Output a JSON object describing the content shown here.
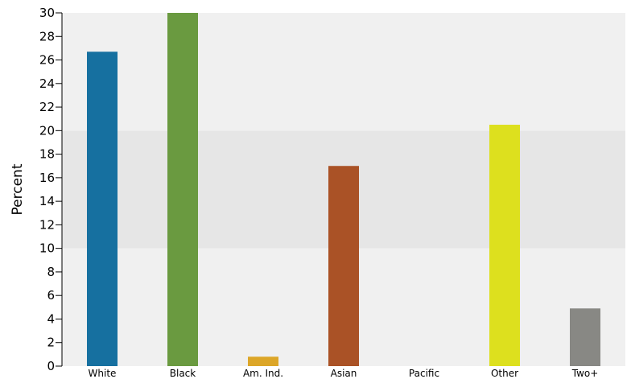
{
  "chart_data": {
    "type": "bar",
    "title": "",
    "xlabel": "",
    "ylabel": "Percent",
    "ylim": [
      0,
      30
    ],
    "yticks": [
      0,
      2,
      4,
      6,
      8,
      10,
      12,
      14,
      16,
      18,
      20,
      22,
      24,
      26,
      28,
      30
    ],
    "categories": [
      "White",
      "Black",
      "Am. Ind.",
      "Asian",
      "Pacific",
      "Other",
      "Two+"
    ],
    "values": [
      26.7,
      30.0,
      0.8,
      17.0,
      0.0,
      20.5,
      4.9
    ],
    "colors": [
      "#1670a0",
      "#6a9a40",
      "#dca628",
      "#aa5226",
      "#ffffff",
      "#dde01e",
      "#888884"
    ],
    "bands": [
      {
        "from": 0,
        "to": 10,
        "color": "#f0f0f0"
      },
      {
        "from": 10,
        "to": 20,
        "color": "#e6e6e6"
      },
      {
        "from": 20,
        "to": 30,
        "color": "#f0f0f0"
      }
    ],
    "grid": false,
    "legend": "none"
  }
}
